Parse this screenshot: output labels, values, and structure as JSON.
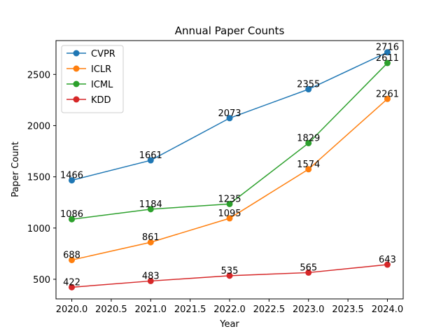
{
  "chart_data": {
    "type": "line",
    "title": "Annual Paper Counts",
    "xlabel": "Year",
    "ylabel": "Paper Count",
    "x": [
      2020,
      2021,
      2022,
      2023,
      2024
    ],
    "xlim": [
      2019.8,
      2024.2
    ],
    "ylim": [
      308.3,
      2830
    ],
    "xticks": [
      2020.0,
      2020.5,
      2021.0,
      2021.5,
      2022.0,
      2022.5,
      2023.0,
      2023.5,
      2024.0
    ],
    "xtick_labels": [
      "2020.0",
      "2020.5",
      "2021.0",
      "2021.5",
      "2022.0",
      "2022.5",
      "2023.0",
      "2023.5",
      "2024.0"
    ],
    "yticks": [
      500,
      1000,
      1500,
      2000,
      2500
    ],
    "ytick_labels": [
      "500",
      "1000",
      "1500",
      "2000",
      "2500"
    ],
    "grid": false,
    "legend_position": "top-left",
    "series": [
      {
        "name": "CVPR",
        "color": "#1f77b4",
        "values": [
          1466,
          1661,
          2073,
          2355,
          2716
        ],
        "labels": [
          "1466",
          "1661",
          "2073",
          "2355",
          "2716"
        ]
      },
      {
        "name": "ICLR",
        "color": "#ff7f0e",
        "values": [
          688,
          861,
          1095,
          1574,
          2261
        ],
        "labels": [
          "688",
          "861",
          "1095",
          "1574",
          "2261"
        ]
      },
      {
        "name": "ICML",
        "color": "#2ca02c",
        "values": [
          1086,
          1184,
          1235,
          1829,
          2611
        ],
        "labels": [
          "1086",
          "1184",
          "1235",
          "1829",
          "2611"
        ]
      },
      {
        "name": "KDD",
        "color": "#d62728",
        "values": [
          422,
          483,
          535,
          565,
          643
        ],
        "labels": [
          "422",
          "483",
          "535",
          "565",
          "643"
        ]
      }
    ]
  }
}
